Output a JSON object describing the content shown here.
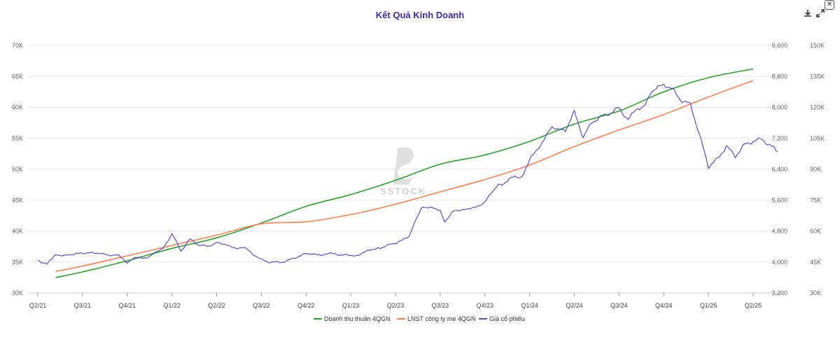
{
  "chart_data": {
    "type": "line",
    "title": "Kết Quả Kinh Doanh",
    "x_ticks": [
      "Q2/21",
      "Q3/21",
      "Q4/21",
      "Q1/22",
      "Q2/22",
      "Q3/22",
      "Q4/22",
      "Q1/23",
      "Q2/23",
      "Q3/23",
      "Q4/23",
      "Q1/24",
      "Q2/24",
      "Q3/24",
      "Q4/24",
      "Q1/25",
      "Q2/25"
    ],
    "y_left": {
      "min": 30000,
      "max": 70000,
      "ticks": [
        "30K",
        "35K",
        "40K",
        "45K",
        "50K",
        "55K",
        "60K",
        "65K",
        "70K"
      ]
    },
    "y_right1": {
      "min": 3200,
      "max": 9600,
      "ticks": [
        "3,200",
        "4,000",
        "4,800",
        "5,600",
        "6,400",
        "7,200",
        "8,000",
        "8,800",
        "9,600"
      ]
    },
    "y_right2": {
      "min": 30000,
      "max": 150000,
      "ticks": [
        "30K",
        "45K",
        "60K",
        "75K",
        "90K",
        "105K",
        "120K",
        "135K",
        "150K"
      ]
    },
    "series": [
      {
        "name": "Doanh thu thuần 4QGN",
        "color": "#2ca02c",
        "axis": "left",
        "x": [
          0.4,
          1,
          2,
          3,
          4,
          5,
          6,
          7,
          8,
          9,
          10,
          11,
          12,
          13,
          14,
          15,
          16
        ],
        "values": [
          32500,
          33400,
          35200,
          37200,
          38900,
          41300,
          44000,
          45900,
          48200,
          50800,
          52300,
          54500,
          57300,
          59400,
          62500,
          64800,
          66200
        ]
      },
      {
        "name": "LNST công ty mẹ 4QGN",
        "color": "#ff7f50",
        "axis": "right2",
        "x": [
          0.4,
          1,
          2,
          3,
          4,
          5,
          6,
          7,
          8,
          9,
          10,
          11,
          12,
          13,
          14,
          15,
          16
        ],
        "values": [
          40500,
          43000,
          48000,
          53000,
          58000,
          63500,
          64500,
          68000,
          73000,
          79000,
          85000,
          92000,
          101000,
          109000,
          116500,
          125000,
          133000
        ]
      },
      {
        "name": "Giá cổ phiếu",
        "color": "#5b4fc4",
        "axis": "right1",
        "x": [
          0,
          0.2,
          0.35,
          0.5,
          0.8,
          1,
          1.2,
          1.5,
          1.8,
          2,
          2.2,
          2.5,
          2.8,
          3,
          3.2,
          3.4,
          3.6,
          3.8,
          4,
          4.3,
          4.6,
          5,
          5.2,
          5.4,
          5.6,
          5.8,
          6,
          6.3,
          6.6,
          7,
          7.3,
          7.6,
          8,
          8.3,
          8.6,
          8.8,
          9,
          9.1,
          9.3,
          9.5,
          9.8,
          10,
          10.3,
          10.5,
          10.8,
          11,
          11.2,
          11.5,
          11.8,
          12,
          12.2,
          12.4,
          12.6,
          12.8,
          13,
          13.2,
          13.5,
          13.7,
          14,
          14.2,
          14.4,
          14.6,
          14.8,
          15,
          15.2,
          15.4,
          15.6,
          15.8,
          16,
          16.2,
          16.4,
          16.55
        ],
        "values": [
          4050,
          3950,
          4150,
          4180,
          4200,
          4250,
          4230,
          4220,
          4150,
          3980,
          4100,
          4150,
          4350,
          4750,
          4300,
          4600,
          4450,
          4400,
          4500,
          4400,
          4370,
          4050,
          4000,
          4000,
          4050,
          4150,
          4220,
          4200,
          4200,
          4150,
          4250,
          4350,
          4500,
          4650,
          5450,
          5400,
          5350,
          5050,
          5300,
          5350,
          5400,
          5550,
          6000,
          6100,
          6200,
          6650,
          7000,
          7450,
          7400,
          7850,
          7200,
          7600,
          7750,
          7850,
          8000,
          7700,
          8000,
          8350,
          8600,
          8450,
          8150,
          8050,
          7250,
          6450,
          6650,
          7000,
          6750,
          7050,
          7150,
          7200,
          7000,
          6850
        ]
      }
    ],
    "legend": [
      "Doanh thu thuần 4QGN",
      "LNST công ty mẹ 4QGN",
      "Giá cổ phiếu"
    ],
    "legend_position": "bottom",
    "watermark": "SSTOCK"
  },
  "toolbar": {
    "download_icon": "download-icon",
    "expand_icon": "expand-icon",
    "close_icon": "close-icon"
  }
}
